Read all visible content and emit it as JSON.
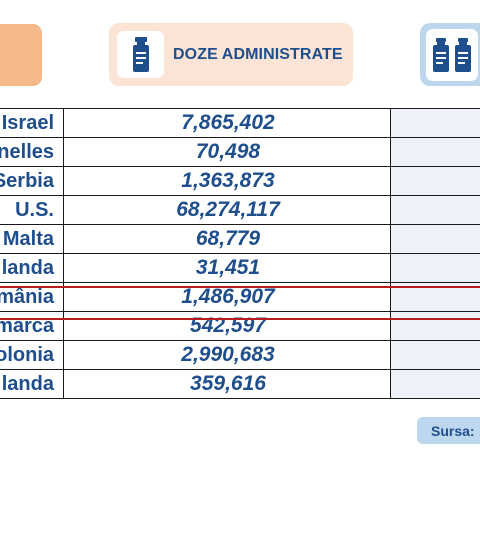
{
  "header": {
    "doses_title": "DOZE ADMINISTRATE",
    "left_badge_color": "#f5b88a",
    "doses_badge_color": "#fbe4d5",
    "right_badge_color": "#bdd7ee",
    "doses_icon": "vaccine-vial-icon",
    "right_icon": "two-vaccine-vials-icon"
  },
  "table": {
    "rows": [
      {
        "country": "Israel",
        "doses": "7,865,402"
      },
      {
        "country": "nelles",
        "doses": "70,498"
      },
      {
        "country": "Serbia",
        "doses": "1,363,873"
      },
      {
        "country": "U.S.",
        "doses": "68,274,117"
      },
      {
        "country": "Malta",
        "doses": "68,779"
      },
      {
        "country": "landa",
        "doses": "31,451"
      },
      {
        "country": "mânia",
        "doses": "1,486,907",
        "highlighted": true
      },
      {
        "country": "marca",
        "doses": "542,597"
      },
      {
        "country": "olonia",
        "doses": "2,990,683"
      },
      {
        "country": "landa",
        "doses": "359,616"
      }
    ],
    "text_color": "#1f4e8c",
    "highlight_color": "#b81c1c"
  },
  "source": {
    "label": "Sursa:"
  }
}
